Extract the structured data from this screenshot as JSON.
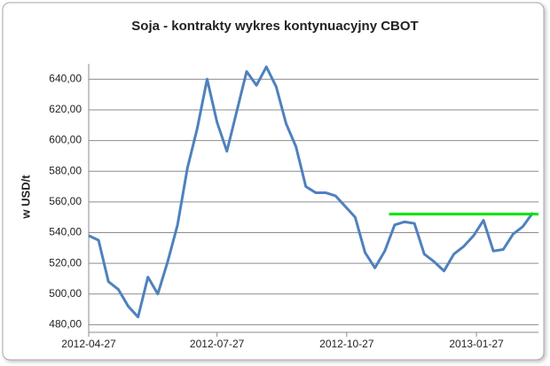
{
  "chart_data": {
    "type": "line",
    "title": "Soja - kontrakty wykres kontynuacyjny CBOT",
    "y_label": "w USD/t",
    "x": [
      "2012-04-27",
      "2012-05-04",
      "2012-05-11",
      "2012-05-18",
      "2012-05-25",
      "2012-06-01",
      "2012-06-08",
      "2012-06-15",
      "2012-06-22",
      "2012-06-29",
      "2012-07-06",
      "2012-07-13",
      "2012-07-20",
      "2012-07-27",
      "2012-08-03",
      "2012-08-10",
      "2012-08-17",
      "2012-08-24",
      "2012-08-31",
      "2012-09-07",
      "2012-09-14",
      "2012-09-21",
      "2012-09-28",
      "2012-10-05",
      "2012-10-12",
      "2012-10-19",
      "2012-10-26",
      "2012-11-02",
      "2012-11-09",
      "2012-11-16",
      "2012-11-23",
      "2012-11-30",
      "2012-12-07",
      "2012-12-14",
      "2012-12-21",
      "2012-12-28",
      "2013-01-04",
      "2013-01-11",
      "2013-01-18",
      "2013-01-25",
      "2013-02-01",
      "2013-02-08",
      "2013-02-15",
      "2013-02-22",
      "2013-03-01",
      "2013-03-08"
    ],
    "series": [
      {
        "name": "Soja",
        "color": "#4f81bd",
        "values": [
          538,
          535,
          508,
          503,
          492,
          485,
          511,
          500,
          521,
          545,
          582,
          608,
          640,
          612,
          593,
          619,
          645,
          636,
          648,
          635,
          611,
          596,
          570,
          566,
          566,
          564,
          557,
          550,
          527,
          517,
          528,
          545,
          547,
          546,
          526,
          521,
          515,
          526,
          531,
          538,
          548,
          528,
          529,
          539,
          544,
          553
        ]
      }
    ],
    "reference_line": {
      "value": 552,
      "x": [
        "2012-11-26",
        "2013-03-12"
      ],
      "color": "#00e600"
    },
    "xlim": [
      "2012-04-27",
      "2013-03-12"
    ],
    "xticks": [
      "2012-04-27",
      "2012-07-27",
      "2012-10-27",
      "2013-01-27"
    ],
    "ylim": [
      475,
      650
    ],
    "yticks": [
      {
        "value": 480,
        "label": "480,00"
      },
      {
        "value": 500,
        "label": "500,00"
      },
      {
        "value": 520,
        "label": "520,00"
      },
      {
        "value": 540,
        "label": "540,00"
      },
      {
        "value": 560,
        "label": "560,00"
      },
      {
        "value": 580,
        "label": "580,00"
      },
      {
        "value": 600,
        "label": "600,00"
      },
      {
        "value": 620,
        "label": "620,00"
      },
      {
        "value": 640,
        "label": "640,00"
      }
    ],
    "grid": true
  }
}
